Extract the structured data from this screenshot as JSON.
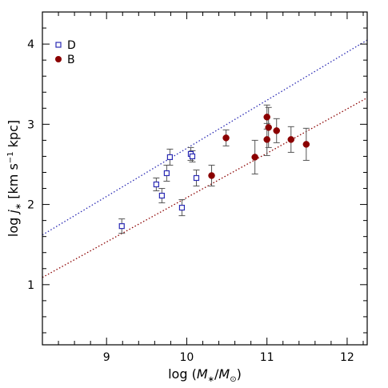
{
  "chart_data": {
    "type": "scatter",
    "xlabel": "log (M∗/M⊙)",
    "ylabel": "log j∗ [km s⁻¹ kpc]",
    "xlim": [
      8.2,
      12.25
    ],
    "ylim": [
      0.25,
      4.4
    ],
    "xticks": [
      9,
      10,
      11,
      12
    ],
    "yticks": [
      1,
      2,
      3,
      4
    ],
    "grid": false,
    "legend_position": "top-left",
    "series": [
      {
        "name": "D",
        "marker": "open-square",
        "color": "#2a2ab4",
        "points": [
          {
            "x": 9.19,
            "y": 1.73,
            "err": 0.09
          },
          {
            "x": 9.62,
            "y": 2.25,
            "err": 0.08
          },
          {
            "x": 9.69,
            "y": 2.11,
            "err": 0.09
          },
          {
            "x": 9.75,
            "y": 2.39,
            "err": 0.1
          },
          {
            "x": 9.79,
            "y": 2.59,
            "err": 0.1
          },
          {
            "x": 9.94,
            "y": 1.96,
            "err": 0.1
          },
          {
            "x": 10.05,
            "y": 2.63,
            "err": 0.08
          },
          {
            "x": 10.07,
            "y": 2.6,
            "err": 0.07
          },
          {
            "x": 10.12,
            "y": 2.33,
            "err": 0.1
          }
        ]
      },
      {
        "name": "B",
        "marker": "filled-circle",
        "color": "#8b0000",
        "points": [
          {
            "x": 10.31,
            "y": 2.36,
            "err": 0.13
          },
          {
            "x": 10.49,
            "y": 2.83,
            "err": 0.1
          },
          {
            "x": 10.85,
            "y": 2.59,
            "err": 0.21
          },
          {
            "x": 11.0,
            "y": 3.09,
            "err": 0.15
          },
          {
            "x": 11.0,
            "y": 2.81,
            "err": 0.2
          },
          {
            "x": 11.02,
            "y": 2.96,
            "err": 0.25
          },
          {
            "x": 11.12,
            "y": 2.92,
            "err": 0.15
          },
          {
            "x": 11.3,
            "y": 2.81,
            "err": 0.16
          },
          {
            "x": 11.49,
            "y": 2.75,
            "err": 0.2
          }
        ]
      }
    ],
    "reference_lines": [
      {
        "series": "D",
        "style": "dotted",
        "color": "#2a2ab4",
        "x": [
          8.2,
          12.25
        ],
        "y": [
          1.62,
          4.05
        ]
      },
      {
        "series": "B",
        "style": "dotted",
        "color": "#8b0000",
        "x": [
          8.2,
          12.25
        ],
        "y": [
          1.09,
          3.33
        ]
      }
    ]
  }
}
